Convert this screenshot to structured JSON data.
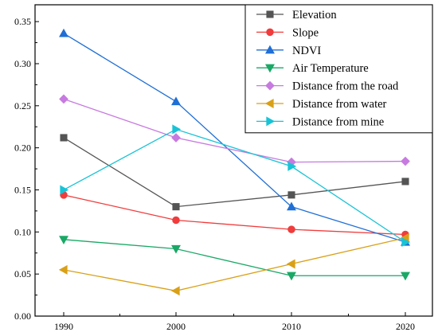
{
  "chart_data": {
    "type": "line",
    "title": "",
    "xlabel": "",
    "ylabel": "",
    "x": [
      "1990",
      "2000",
      "2010",
      "2020"
    ],
    "ylim": [
      0,
      0.37
    ],
    "y_ticks": [
      "0.00",
      "0.05",
      "0.10",
      "0.15",
      "0.20",
      "0.25",
      "0.30",
      "0.35"
    ],
    "grid": false,
    "legend_position": "top-right",
    "series": [
      {
        "name": "Elevation",
        "color": "#555555",
        "marker": "square",
        "values": [
          0.212,
          0.13,
          0.144,
          0.16
        ]
      },
      {
        "name": "Slope",
        "color": "#f03c3c",
        "marker": "circle",
        "values": [
          0.144,
          0.114,
          0.103,
          0.097
        ]
      },
      {
        "name": "NDVI",
        "color": "#1f6fd6",
        "marker": "triangle-up",
        "values": [
          0.336,
          0.255,
          0.13,
          0.088
        ]
      },
      {
        "name": "Air Temperature",
        "color": "#1aa866",
        "marker": "triangle-down",
        "values": [
          0.091,
          0.08,
          0.048,
          0.048
        ]
      },
      {
        "name": "Distance from the road",
        "color": "#c77ae0",
        "marker": "diamond",
        "values": [
          0.258,
          0.212,
          0.183,
          0.184
        ]
      },
      {
        "name": "Distance from water",
        "color": "#d9a017",
        "marker": "triangle-left",
        "values": [
          0.055,
          0.03,
          0.062,
          0.093
        ]
      },
      {
        "name": "Distance from mine",
        "color": "#19c3d6",
        "marker": "triangle-right",
        "values": [
          0.15,
          0.222,
          0.178,
          0.088
        ]
      }
    ]
  }
}
